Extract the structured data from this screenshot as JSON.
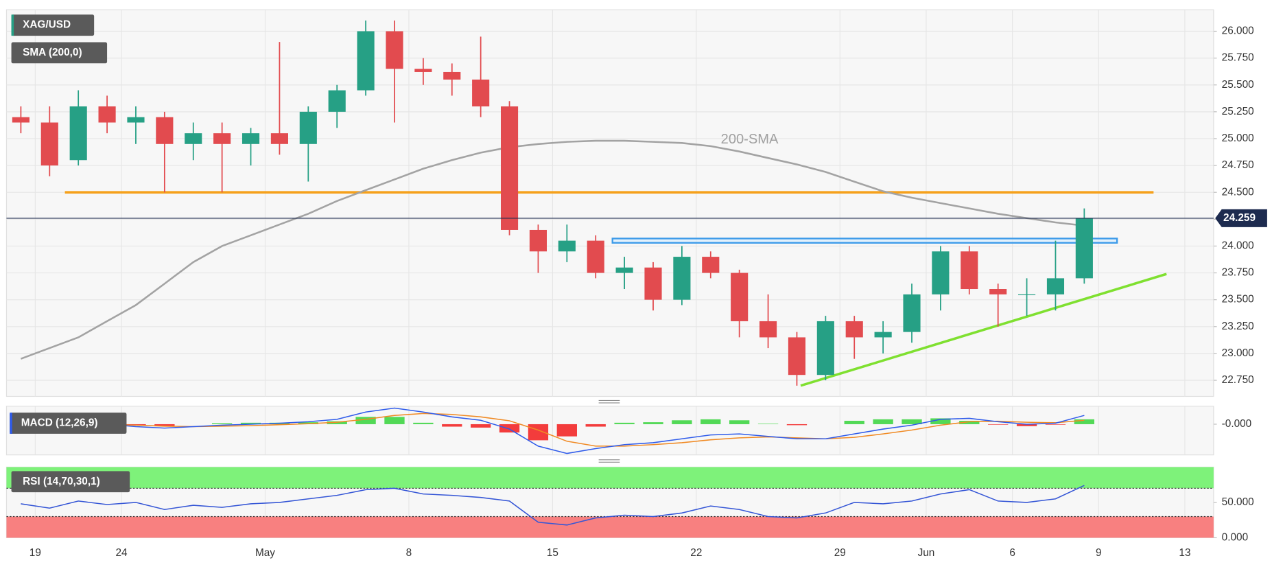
{
  "chart_data": [
    {
      "type": "candlestick",
      "categories": [
        null,
        "19",
        null,
        null,
        "24",
        null,
        null,
        null,
        null,
        "May",
        null,
        null,
        null,
        null,
        "8",
        null,
        null,
        null,
        null,
        "15",
        null,
        null,
        null,
        null,
        "22",
        null,
        null,
        null,
        null,
        "29",
        null,
        null,
        "Jun",
        null,
        null,
        "6",
        null,
        null,
        "9",
        null,
        null,
        "13"
      ],
      "series": [
        {
          "name": "XAG/USD",
          "color_up": "#26a085",
          "color_down": "#e24b4f",
          "open": [
            25.2,
            25.15,
            24.8,
            25.3,
            25.15,
            25.2,
            24.95,
            25.05,
            24.95,
            25.05,
            24.95,
            25.25,
            25.45,
            26.0,
            25.65,
            25.62,
            25.55,
            25.3,
            24.15,
            23.95,
            24.05,
            23.75,
            23.8,
            23.5,
            23.9,
            23.75,
            23.3,
            23.15,
            22.8,
            23.3,
            23.15,
            23.2,
            23.55,
            23.95,
            23.6,
            23.55,
            23.55,
            23.7,
            null,
            null,
            null,
            null
          ],
          "high": [
            25.3,
            25.3,
            25.45,
            25.4,
            25.3,
            25.25,
            25.15,
            25.15,
            25.1,
            25.9,
            25.3,
            25.5,
            26.1,
            26.1,
            25.75,
            25.7,
            25.95,
            25.35,
            24.2,
            24.2,
            24.1,
            23.9,
            23.85,
            24.0,
            23.95,
            23.78,
            23.55,
            23.2,
            23.35,
            23.35,
            23.3,
            23.65,
            24.0,
            24.0,
            23.65,
            23.7,
            24.05,
            24.35,
            null,
            null,
            null,
            null
          ],
          "low": [
            25.05,
            24.65,
            24.75,
            25.05,
            24.95,
            24.5,
            24.8,
            24.5,
            24.75,
            24.85,
            24.6,
            25.1,
            25.4,
            25.15,
            25.5,
            25.4,
            25.2,
            24.1,
            23.75,
            23.85,
            23.7,
            23.6,
            23.4,
            23.45,
            23.7,
            23.15,
            23.05,
            22.7,
            22.75,
            22.95,
            23.0,
            23.1,
            23.4,
            23.55,
            23.25,
            23.35,
            23.4,
            23.65,
            null,
            null,
            null,
            null
          ],
          "close": [
            25.15,
            24.75,
            25.3,
            25.15,
            25.2,
            24.95,
            25.05,
            24.95,
            25.05,
            24.95,
            25.25,
            25.45,
            26.0,
            25.65,
            25.62,
            25.55,
            25.3,
            24.15,
            23.95,
            24.05,
            23.75,
            23.8,
            23.5,
            23.9,
            23.75,
            23.3,
            23.15,
            22.8,
            23.3,
            23.15,
            23.2,
            23.55,
            23.95,
            23.6,
            23.55,
            23.55,
            23.7,
            24.259,
            null,
            null,
            null,
            null
          ]
        },
        {
          "name": "SMA (200,0)",
          "color": "#a3a3a3",
          "values": [
            22.95,
            23.05,
            23.15,
            23.3,
            23.45,
            23.65,
            23.85,
            24.0,
            24.1,
            24.2,
            24.3,
            24.42,
            24.52,
            24.62,
            24.72,
            24.8,
            24.87,
            24.92,
            24.95,
            24.97,
            24.98,
            24.98,
            24.97,
            24.96,
            24.93,
            24.88,
            24.82,
            24.76,
            24.69,
            24.6,
            24.51,
            24.45,
            24.4,
            24.35,
            24.3,
            24.26,
            24.22,
            24.19,
            null,
            null,
            null,
            null
          ]
        }
      ],
      "ylim": [
        22.6,
        26.2
      ],
      "yticks": [
        {
          "value": 22.75,
          "label": "22.750"
        },
        {
          "value": 23.0,
          "label": "23.000"
        },
        {
          "value": 23.25,
          "label": "23.250"
        },
        {
          "value": 23.5,
          "label": "23.500"
        },
        {
          "value": 23.75,
          "label": "23.750"
        },
        {
          "value": 24.0,
          "label": "24.000"
        },
        {
          "value": 24.25,
          "label": "24.250"
        },
        {
          "value": 24.5,
          "label": "24.500"
        },
        {
          "value": 24.75,
          "label": "24.750"
        },
        {
          "value": 25.0,
          "label": "25.000"
        },
        {
          "value": 25.25,
          "label": "25.250"
        },
        {
          "value": 25.5,
          "label": "25.500"
        },
        {
          "value": 25.75,
          "label": "25.750"
        },
        {
          "value": 26.0,
          "label": "26.000"
        }
      ],
      "grid": true,
      "annotation": "200-SMA",
      "last_price": {
        "value": 24.259,
        "label": "24.259"
      },
      "resistance": {
        "value": 24.5,
        "color": "#f5a11c"
      },
      "zone": {
        "values": [
          24.03,
          24.07
        ],
        "color": "#3d9be9"
      },
      "trendline": {
        "values": [
          22.7,
          23.74
        ],
        "color": "#7fe030"
      }
    },
    {
      "type": "macd",
      "title": "MACD (12,26,9)",
      "macd": {
        "color": "#2f5bea",
        "values": [
          0.0,
          -0.02,
          -0.03,
          0.0,
          -0.05,
          -0.08,
          -0.05,
          -0.02,
          0.0,
          0.02,
          0.05,
          0.1,
          0.25,
          0.33,
          0.25,
          0.15,
          0.08,
          -0.1,
          -0.45,
          -0.6,
          -0.5,
          -0.42,
          -0.38,
          -0.3,
          -0.22,
          -0.2,
          -0.25,
          -0.3,
          -0.3,
          -0.2,
          -0.1,
          -0.02,
          0.1,
          0.12,
          0.05,
          0.0,
          0.02,
          0.18,
          null,
          null,
          null,
          null
        ]
      },
      "signal": {
        "color": "#f08a24",
        "values": [
          0.0,
          0.0,
          -0.01,
          -0.01,
          -0.02,
          -0.04,
          -0.05,
          -0.04,
          -0.03,
          -0.01,
          0.01,
          0.04,
          0.1,
          0.18,
          0.22,
          0.2,
          0.15,
          0.07,
          -0.12,
          -0.35,
          -0.45,
          -0.45,
          -0.42,
          -0.38,
          -0.32,
          -0.28,
          -0.26,
          -0.28,
          -0.3,
          -0.27,
          -0.2,
          -0.12,
          -0.02,
          0.05,
          0.06,
          0.04,
          0.03,
          0.08,
          null,
          null,
          null,
          null
        ]
      },
      "histogram": {
        "color_up": "#35d43a",
        "color_down": "#f21b1b",
        "values": [
          0.0,
          -0.02,
          -0.02,
          0.01,
          -0.03,
          -0.04,
          0.0,
          0.02,
          0.03,
          0.03,
          0.04,
          0.06,
          0.15,
          0.15,
          0.03,
          -0.05,
          -0.07,
          -0.17,
          -0.33,
          -0.25,
          -0.05,
          0.03,
          0.04,
          0.08,
          0.1,
          0.08,
          0.01,
          -0.02,
          0.0,
          0.07,
          0.1,
          0.1,
          0.12,
          0.07,
          -0.01,
          -0.04,
          -0.01,
          0.1,
          null,
          null,
          null,
          null
        ]
      },
      "ylim": [
        -0.63,
        0.37
      ],
      "yticks": [
        {
          "value": 0,
          "label": "-0.000"
        }
      ]
    },
    {
      "type": "rsi",
      "title": "RSI (14,70,30,1)",
      "color": "#3556d6",
      "values": [
        48,
        42,
        52,
        47,
        50,
        40,
        46,
        43,
        48,
        50,
        55,
        60,
        68,
        70,
        62,
        60,
        57,
        52,
        22,
        18,
        28,
        32,
        30,
        35,
        45,
        40,
        30,
        28,
        35,
        50,
        48,
        52,
        62,
        68,
        52,
        50,
        55,
        74,
        null,
        null,
        null,
        null
      ],
      "upper_band": {
        "value": 70,
        "color": "#7ef27a"
      },
      "lower_band": {
        "value": 30,
        "color": "#f88080"
      },
      "ylim": [
        0,
        100
      ],
      "yticks": [
        {
          "value": 50,
          "label": "50.000"
        },
        {
          "value": 0,
          "label": "0.000"
        }
      ]
    }
  ]
}
